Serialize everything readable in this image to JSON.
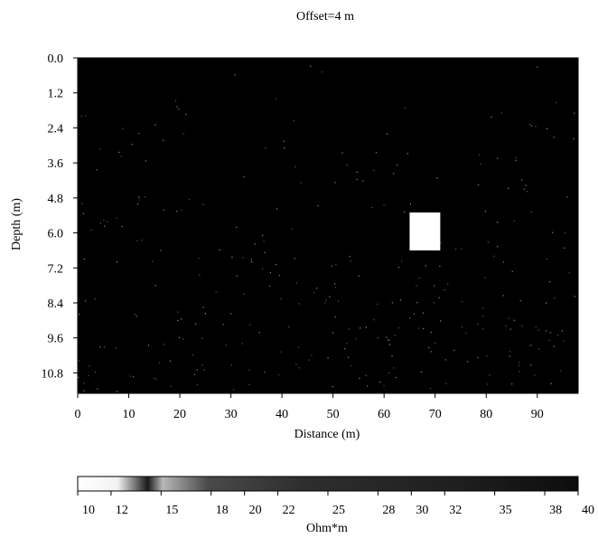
{
  "chart_data": {
    "type": "heatmap",
    "title": "Offset=4 m",
    "xlabel": "Distance (m)",
    "ylabel": "Depth (m)",
    "xlim": [
      0,
      98
    ],
    "ylim": [
      11.5,
      0
    ],
    "xticks": [
      0,
      10,
      20,
      30,
      40,
      50,
      60,
      70,
      80,
      90
    ],
    "xtick_labels": [
      "0",
      "10",
      "20",
      "30",
      "40",
      "50",
      "60",
      "70",
      "80",
      "90"
    ],
    "yticks": [
      0.0,
      1.2,
      2.4,
      3.6,
      4.8,
      6.0,
      7.2,
      8.4,
      9.6,
      10.8
    ],
    "ytick_labels": [
      "0.0",
      "1.2",
      "2.4",
      "3.6",
      "4.8",
      "6.0",
      "7.2",
      "8.4",
      "9.6",
      "10.8"
    ],
    "background_resistivity": 40,
    "anomaly": {
      "x": [
        65,
        71
      ],
      "depth": [
        5.3,
        6.6
      ],
      "resistivity": 10
    },
    "colorbar": {
      "label": "Ohm*m",
      "range": [
        10,
        40
      ],
      "ticks": [
        10,
        12,
        15,
        18,
        20,
        22,
        25,
        28,
        30,
        32,
        35,
        38,
        40
      ],
      "tick_labels": [
        "10",
        "12",
        "15",
        "18",
        "20",
        "22",
        "25",
        "28",
        "30",
        "32",
        "35",
        "38",
        "40"
      ],
      "scale": "white (low) to black (high)"
    },
    "grid": false,
    "legend": "none"
  }
}
